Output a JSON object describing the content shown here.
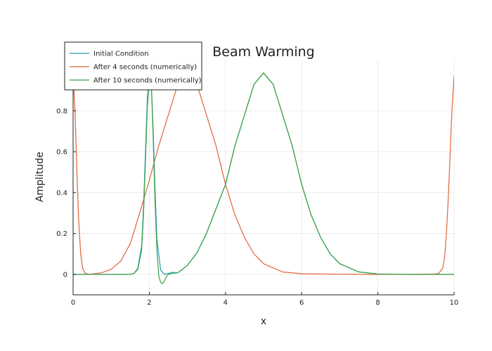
{
  "chart_data": {
    "type": "line",
    "title": "Beam Warming",
    "xlabel": "x",
    "ylabel": "Amplitude",
    "xlim": [
      0,
      10
    ],
    "ylim": [
      -0.1,
      1.05
    ],
    "xticks": [
      0,
      2,
      4,
      6,
      8,
      10
    ],
    "yticks": [
      0,
      0.2,
      0.4,
      0.6,
      0.8
    ],
    "grid": true,
    "legend_position": "top-left",
    "series": [
      {
        "name": "Initial Condition",
        "color": "#1f9bb5",
        "x": [
          0,
          1.5,
          1.6,
          1.7,
          1.8,
          1.85,
          1.9,
          1.95,
          2.0,
          2.02,
          2.05,
          2.1,
          2.15,
          2.2,
          2.3,
          2.4,
          2.5,
          2.6,
          2.75,
          3.0,
          3.25,
          3.5,
          3.75,
          4.0,
          4.25,
          4.5,
          4.75,
          5.0,
          5.25,
          5.5,
          5.75,
          6.0,
          6.25,
          6.5,
          6.75,
          7.0,
          7.5,
          8.0,
          9.0,
          10.0
        ],
        "y": [
          0,
          0,
          0.005,
          0.03,
          0.14,
          0.33,
          0.6,
          0.86,
          0.975,
          0.98,
          0.94,
          0.72,
          0.42,
          0.17,
          0.02,
          0.0,
          0.005,
          0.01,
          0.008,
          0.044,
          0.105,
          0.2,
          0.32,
          0.44,
          0.63,
          0.78,
          0.93,
          0.985,
          0.93,
          0.78,
          0.63,
          0.44,
          0.29,
          0.18,
          0.1,
          0.052,
          0.012,
          0.002,
          0,
          0
        ]
      },
      {
        "name": "After 4 seconds (numerically)",
        "color": "#e26236",
        "x": [
          0,
          0.05,
          0.1,
          0.15,
          0.2,
          0.25,
          0.3,
          0.35,
          0.4,
          0.5,
          0.75,
          1.0,
          1.25,
          1.5,
          1.75,
          2.0,
          2.25,
          2.5,
          2.75,
          3.0,
          3.25,
          3.5,
          3.75,
          4.0,
          4.25,
          4.5,
          4.75,
          5.0,
          5.5,
          6.0,
          7.0,
          8.0,
          9.0,
          9.5,
          9.6,
          9.7,
          9.75,
          9.8,
          9.85,
          9.9,
          9.95,
          10.0
        ],
        "y": [
          0.97,
          0.8,
          0.5,
          0.25,
          0.1,
          0.03,
          0.01,
          0.003,
          0.001,
          0.002,
          0.008,
          0.025,
          0.065,
          0.15,
          0.3,
          0.46,
          0.63,
          0.78,
          0.93,
          0.985,
          0.93,
          0.78,
          0.63,
          0.44,
          0.29,
          0.18,
          0.1,
          0.052,
          0.012,
          0.003,
          0.001,
          0.0,
          0.001,
          0.002,
          0.005,
          0.03,
          0.08,
          0.2,
          0.38,
          0.6,
          0.82,
          0.97
        ]
      },
      {
        "name": "After 10 seconds (numerically)",
        "color": "#3aa043",
        "x": [
          0,
          1.5,
          1.6,
          1.7,
          1.8,
          1.85,
          1.9,
          1.95,
          2.0,
          2.03,
          2.06,
          2.1,
          2.15,
          2.2,
          2.25,
          2.3,
          2.35,
          2.4,
          2.45,
          2.5,
          2.6,
          2.75,
          3.0,
          3.25,
          3.5,
          3.75,
          4.0,
          4.25,
          4.5,
          4.75,
          5.0,
          5.25,
          5.5,
          5.75,
          6.0,
          6.25,
          6.5,
          6.75,
          7.0,
          7.5,
          8.0,
          9.0,
          10.0
        ],
        "y": [
          0,
          0,
          0.005,
          0.025,
          0.12,
          0.3,
          0.56,
          0.82,
          0.95,
          0.955,
          0.9,
          0.68,
          0.36,
          0.12,
          -0.01,
          -0.04,
          -0.045,
          -0.03,
          -0.01,
          0.0,
          0.005,
          0.008,
          0.044,
          0.105,
          0.2,
          0.32,
          0.44,
          0.63,
          0.78,
          0.93,
          0.985,
          0.93,
          0.78,
          0.63,
          0.44,
          0.29,
          0.18,
          0.1,
          0.052,
          0.012,
          0.002,
          0,
          0
        ]
      }
    ]
  }
}
